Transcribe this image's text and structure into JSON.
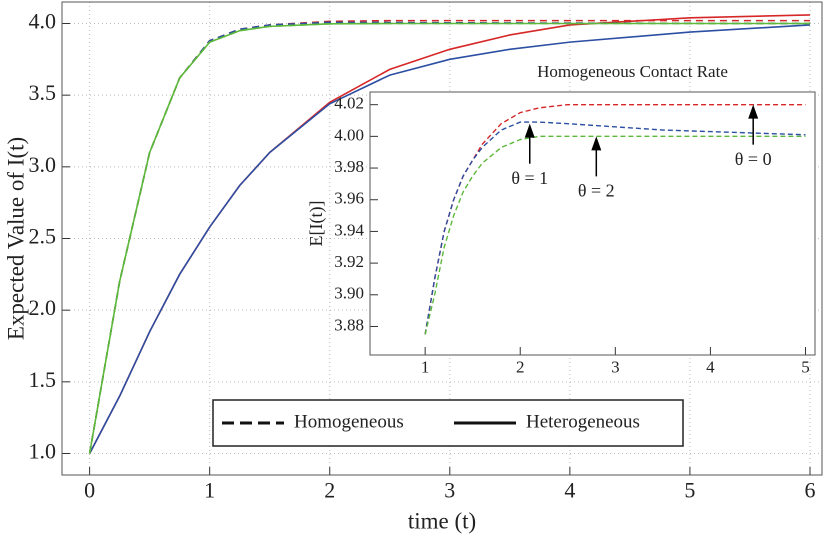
{
  "chart_data": [
    {
      "type": "line",
      "xlabel": "time (t)",
      "ylabel": "Expected Value of I(t)",
      "xlim": [
        -0.23,
        6.1
      ],
      "ylim": [
        0.85,
        4.15
      ],
      "grid": true,
      "xticks": [
        0,
        1,
        2,
        3,
        4,
        5,
        6
      ],
      "yticks": [
        {
          "value": 1,
          "label": "1.0"
        },
        1.5,
        {
          "value": 2,
          "label": "2.0"
        },
        2.5,
        {
          "value": 3,
          "label": "3.0"
        },
        3.5,
        {
          "value": 4,
          "label": "4.0"
        }
      ],
      "legend": [
        {
          "label": "Homogeneous",
          "style": "dashed"
        },
        {
          "label": "Heterogeneous",
          "style": "solid"
        }
      ],
      "x": [
        0,
        0.25,
        0.5,
        0.75,
        1,
        1.25,
        1.5,
        2,
        2.5,
        3,
        3.5,
        4,
        5,
        6
      ],
      "series": [
        {
          "color": "#d62728",
          "style": "solid",
          "values": [
            1,
            1.4,
            1.85,
            2.25,
            2.58,
            2.87,
            3.1,
            3.45,
            3.68,
            3.82,
            3.92,
            3.99,
            4.04,
            4.06
          ]
        },
        {
          "color": "#2c4fa3",
          "style": "solid",
          "values": [
            1,
            1.4,
            1.85,
            2.25,
            2.58,
            2.87,
            3.1,
            3.44,
            3.64,
            3.75,
            3.82,
            3.87,
            3.94,
            3.99
          ]
        },
        {
          "color": "#d62728",
          "style": "dashed",
          "values": [
            1,
            2.2,
            3.1,
            3.62,
            3.88,
            3.96,
            3.99,
            4.015,
            4.02,
            4.02,
            4.02,
            4.02,
            4.02,
            4.02
          ]
        },
        {
          "color": "#2c4fa3",
          "style": "dashed",
          "values": [
            1,
            2.2,
            3.1,
            3.62,
            3.88,
            3.96,
            3.99,
            4.008,
            4.007,
            4.005,
            4.004,
            4.003,
            4.001,
            4.0
          ]
        },
        {
          "color": "#5cb83a",
          "style": "dashed",
          "values": [
            1,
            2.2,
            3.1,
            3.62,
            3.87,
            3.95,
            3.98,
            3.998,
            4.0,
            4.0,
            4.0,
            4.0,
            4.0,
            4.0
          ]
        },
        {
          "color": "#5cb83a",
          "style": "solid",
          "values": [
            1,
            2.2,
            3.1,
            3.62,
            3.87,
            3.95,
            3.98,
            3.998,
            4.0,
            4.0,
            4.0,
            4.0,
            4.0,
            4.0
          ]
        }
      ]
    },
    {
      "type": "line",
      "title": "Homogeneous Contact Rate",
      "ylabel": "E[I(t)]",
      "xlim": [
        0.42,
        5.1
      ],
      "ylim": [
        3.862,
        4.028
      ],
      "grid": false,
      "xticks": [
        1,
        2,
        3,
        4,
        5
      ],
      "yticks": [
        3.88,
        {
          "value": 3.9,
          "label": "3.90"
        },
        3.92,
        3.94,
        3.96,
        3.98,
        {
          "value": 4,
          "label": "4.00"
        },
        4.02
      ],
      "x": [
        1,
        1.1,
        1.2,
        1.3,
        1.4,
        1.5,
        1.6,
        1.8,
        2,
        2.2,
        2.5,
        3,
        3.5,
        4,
        4.5,
        5
      ],
      "series": [
        {
          "color": "#d62728",
          "style": "dashed",
          "values": [
            3.875,
            3.91,
            3.94,
            3.96,
            3.975,
            3.985,
            3.995,
            4.008,
            4.015,
            4.018,
            4.02,
            4.02,
            4.02,
            4.02,
            4.02,
            4.02
          ]
        },
        {
          "color": "#2c4fa3",
          "style": "dashed",
          "values": [
            3.875,
            3.91,
            3.94,
            3.96,
            3.975,
            3.985,
            3.993,
            4.004,
            4.009,
            4.009,
            4.008,
            4.006,
            4.004,
            4.003,
            4.002,
            4.001
          ]
        },
        {
          "color": "#5cb83a",
          "style": "dashed",
          "values": [
            3.875,
            3.9,
            3.93,
            3.95,
            3.965,
            3.975,
            3.983,
            3.993,
            3.998,
            4.0,
            4.0,
            4.0,
            4.0,
            4.0,
            4.0,
            4.0
          ]
        }
      ],
      "annotations": [
        {
          "text": "θ = 1",
          "x": 2.1,
          "y": 4.008
        },
        {
          "text": "θ = 2",
          "x": 2.8,
          "y": 4.0
        },
        {
          "text": "θ = 0",
          "x": 4.45,
          "y": 4.02
        }
      ]
    }
  ]
}
